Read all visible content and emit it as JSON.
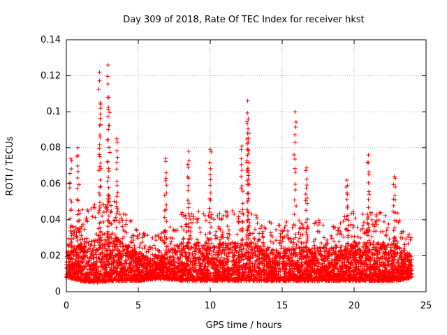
{
  "chart_data": {
    "type": "scatter",
    "title": "Day 309 of 2018, Rate Of TEC Index for receiver hkst",
    "xlabel": "GPS time / hours",
    "ylabel": "ROTI / TECUs",
    "xlim": [
      0,
      24
    ],
    "ylim": [
      0,
      0.14
    ],
    "x_ticks": [
      0,
      5,
      10,
      15,
      20,
      25
    ],
    "x_tick_labels": [
      "0",
      "5",
      "10",
      "15",
      "20",
      "25"
    ],
    "y_ticks": [
      0,
      0.02,
      0.04,
      0.06,
      0.08,
      0.1,
      0.12,
      0.14
    ],
    "y_tick_labels": [
      "0",
      "0.02",
      "0.04",
      "0.06",
      "0.08",
      "0.1",
      "0.12",
      "0.14"
    ],
    "grid": true,
    "marker": "+",
    "series": [
      {
        "name": "ROTI",
        "color": "#ff0000",
        "points_hourly_envelope": {
          "hours": [
            0,
            1,
            2,
            3,
            4,
            5,
            6,
            7,
            8,
            9,
            10,
            11,
            12,
            13,
            14,
            15,
            16,
            17,
            18,
            19,
            20,
            21,
            22,
            23,
            24
          ],
          "typical_low": [
            0.008,
            0.006,
            0.005,
            0.006,
            0.006,
            0.006,
            0.007,
            0.007,
            0.006,
            0.006,
            0.006,
            0.006,
            0.006,
            0.006,
            0.006,
            0.006,
            0.006,
            0.006,
            0.006,
            0.006,
            0.006,
            0.006,
            0.006,
            0.006,
            0.008
          ],
          "typical_high": [
            0.03,
            0.045,
            0.05,
            0.055,
            0.045,
            0.035,
            0.03,
            0.035,
            0.045,
            0.045,
            0.045,
            0.045,
            0.045,
            0.045,
            0.04,
            0.04,
            0.04,
            0.04,
            0.04,
            0.04,
            0.045,
            0.045,
            0.045,
            0.045,
            0.03
          ]
        },
        "notable_peaks": [
          {
            "x": 0.3,
            "y": 0.074
          },
          {
            "x": 0.8,
            "y": 0.08
          },
          {
            "x": 2.3,
            "y": 0.122
          },
          {
            "x": 2.35,
            "y": 0.105
          },
          {
            "x": 2.9,
            "y": 0.126
          },
          {
            "x": 2.95,
            "y": 0.108
          },
          {
            "x": 3.5,
            "y": 0.085
          },
          {
            "x": 6.9,
            "y": 0.074
          },
          {
            "x": 8.5,
            "y": 0.078
          },
          {
            "x": 10.0,
            "y": 0.079
          },
          {
            "x": 12.2,
            "y": 0.081
          },
          {
            "x": 12.6,
            "y": 0.106
          },
          {
            "x": 12.65,
            "y": 0.096
          },
          {
            "x": 12.6,
            "y": 0.088
          },
          {
            "x": 15.9,
            "y": 0.1
          },
          {
            "x": 16.7,
            "y": 0.069
          },
          {
            "x": 21.0,
            "y": 0.076
          },
          {
            "x": 19.5,
            "y": 0.062
          },
          {
            "x": 22.8,
            "y": 0.064
          }
        ]
      }
    ]
  }
}
